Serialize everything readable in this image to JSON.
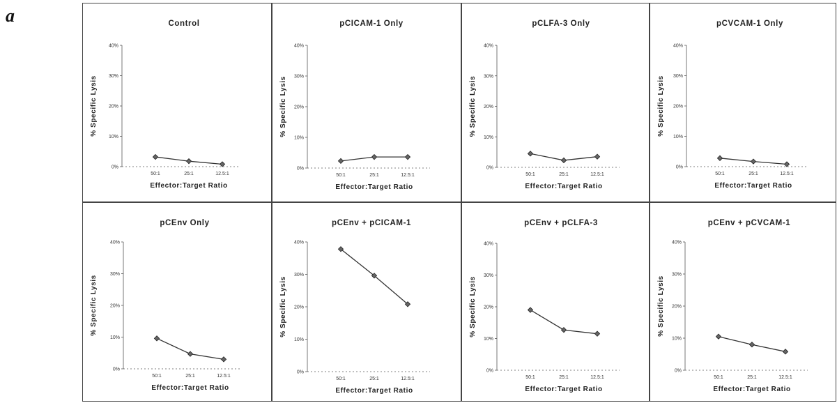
{
  "figure_label": "a",
  "chart_data": [
    {
      "type": "line",
      "title": "Control",
      "xlabel": "Effector:Target   Ratio",
      "ylabel": "%   Specific   Lysis",
      "yticks": [
        "0%",
        "10%",
        "20%",
        "30%",
        "40%"
      ],
      "ylim": [
        0,
        40
      ],
      "categories": [
        "50:1",
        "25:1",
        "12.5:1"
      ],
      "values": [
        3.2,
        1.8,
        0.8
      ]
    },
    {
      "type": "line",
      "title": "pCICAM-1   Only",
      "xlabel": "Effector:Target   Ratio",
      "ylabel": "%   Specific   Lysis",
      "yticks": [
        "0%",
        "10%",
        "20%",
        "30%",
        "40%"
      ],
      "ylim": [
        0,
        40
      ],
      "categories": [
        "50:1",
        "25:1",
        "12.5:1"
      ],
      "values": [
        2.3,
        3.6,
        3.6
      ]
    },
    {
      "type": "line",
      "title": "pCLFA-3   Only",
      "xlabel": "Effector:Target   Ratio",
      "ylabel": "%   Specific   Lysis",
      "yticks": [
        "0%",
        "10%",
        "20%",
        "30%",
        "40%"
      ],
      "ylim": [
        0,
        40
      ],
      "categories": [
        "50:1",
        "25:1",
        "12.5:1"
      ],
      "values": [
        4.5,
        2.3,
        3.5
      ]
    },
    {
      "type": "line",
      "title": "pCVCAM-1   Only",
      "xlabel": "Effector:Target   Ratio",
      "ylabel": "%   Specific   Lysis",
      "yticks": [
        "0%",
        "10%",
        "20%",
        "30%",
        "40%"
      ],
      "ylim": [
        0,
        40
      ],
      "categories": [
        "50:1",
        "25:1",
        "12.5:1"
      ],
      "values": [
        2.8,
        1.7,
        0.8
      ]
    },
    {
      "type": "line",
      "title": "pCEnv   Only",
      "xlabel": "Effector:Target   Ratio",
      "ylabel": "%   Specific   Lysis",
      "yticks": [
        "0%",
        "10%",
        "20%",
        "30%",
        "40%"
      ],
      "ylim": [
        0,
        40
      ],
      "categories": [
        "50:1",
        "25:1",
        "12.5:1"
      ],
      "values": [
        9.6,
        4.7,
        3.0
      ]
    },
    {
      "type": "line",
      "title": "pCEnv   +   pCICAM-1",
      "xlabel": "Effector:Target   Ratio",
      "ylabel": "%   Specific   Lysis",
      "yticks": [
        "0%",
        "10%",
        "20%",
        "30%",
        "40%"
      ],
      "ylim": [
        0,
        40
      ],
      "categories": [
        "50:1",
        "25:1",
        "12.5:1"
      ],
      "values": [
        37.8,
        29.6,
        20.8
      ]
    },
    {
      "type": "line",
      "title": "pCEnv   +   pCLFA-3",
      "xlabel": "Effector:Target   Ratio",
      "ylabel": "%   Specific   Lysis",
      "yticks": [
        "0%",
        "10%",
        "20%",
        "30%",
        "40%"
      ],
      "ylim": [
        0,
        40
      ],
      "categories": [
        "50:1",
        "25:1",
        "12.5:1"
      ],
      "values": [
        19.0,
        12.7,
        11.5
      ]
    },
    {
      "type": "line",
      "title": "pCEnv   +   pCVCAM-1",
      "xlabel": "Effector:Target   Ratio",
      "ylabel": "%   Specific   Lysis",
      "yticks": [
        "0%",
        "10%",
        "20%",
        "30%",
        "40%"
      ],
      "ylim": [
        0,
        40
      ],
      "categories": [
        "50:1",
        "25:1",
        "12.5:1"
      ],
      "values": [
        10.5,
        8.0,
        5.8
      ]
    }
  ]
}
